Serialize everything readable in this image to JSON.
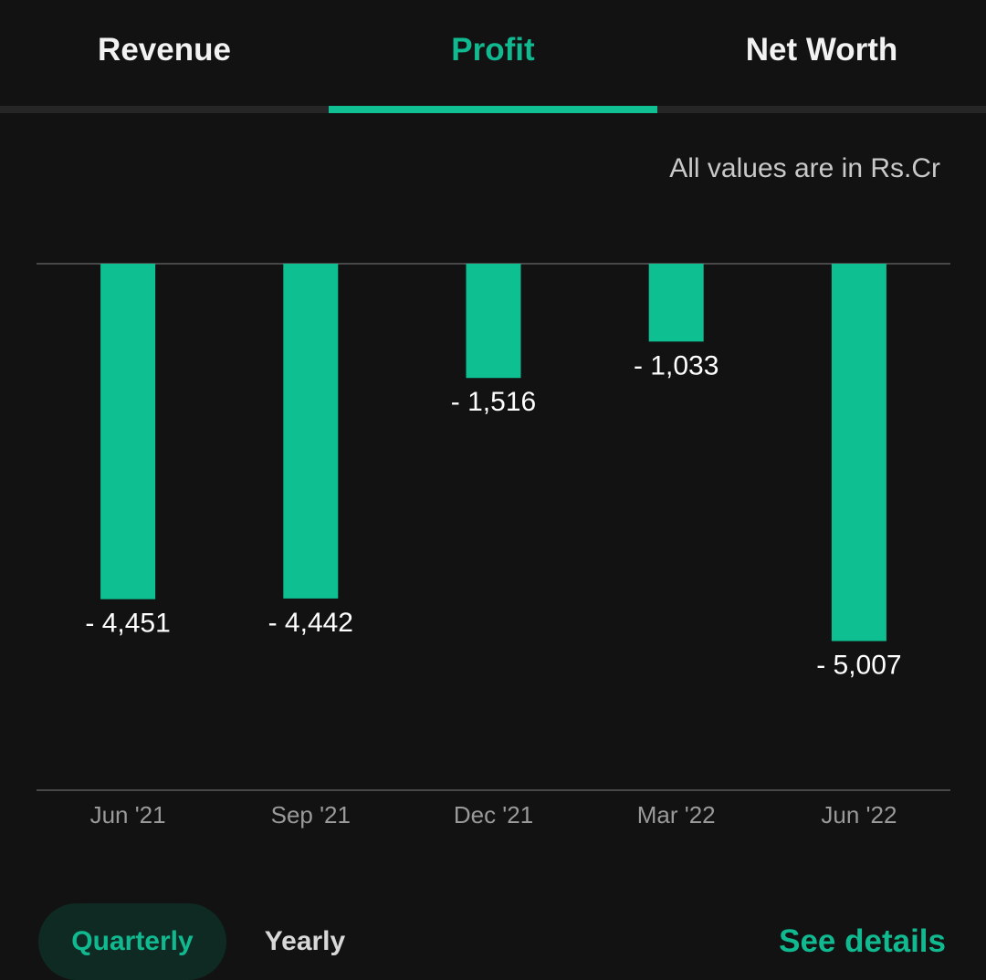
{
  "tabs": [
    {
      "label": "Revenue"
    },
    {
      "label": "Profit"
    },
    {
      "label": "Net Worth"
    }
  ],
  "active_tab": "Profit",
  "unit_note": "All values are in Rs.Cr",
  "colors": {
    "accent": "#10b98f",
    "bar": "#0ebf92",
    "background": "#121212"
  },
  "chart_data": {
    "type": "bar",
    "categories": [
      "Jun '21",
      "Sep '21",
      "Dec '21",
      "Mar '22",
      "Jun '22"
    ],
    "values": [
      -4451,
      -4442,
      -1516,
      -1033,
      -5007
    ],
    "value_labels": [
      "- 4,451",
      "- 4,442",
      "- 1,516",
      "- 1,033",
      "- 5,007"
    ],
    "ylim": [
      -7000,
      0
    ],
    "grid": false,
    "legend": "none"
  },
  "period_toggle": {
    "quarterly_label": "Quarterly",
    "yearly_label": "Yearly",
    "selected": "Quarterly"
  },
  "see_details_label": "See details"
}
